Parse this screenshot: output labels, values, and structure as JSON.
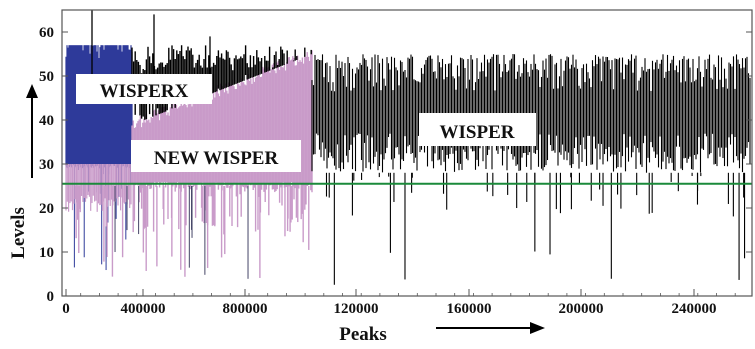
{
  "chart_data": {
    "type": "bar",
    "xlabel": "Peaks",
    "ylabel": "Levels",
    "ylim": [
      0,
      65
    ],
    "y_ticks": [
      0,
      10,
      20,
      30,
      40,
      50,
      60
    ],
    "x_tick_labels": [
      "0",
      "400000",
      "800000",
      "120000",
      "160000",
      "200000",
      "240000"
    ],
    "threshold_level": 25.5,
    "grid": false,
    "colors": {
      "wisperx": "#2e3a9a",
      "new_wisper": "#c99bc9",
      "wisper": "#000000",
      "threshold_line": "#1a8a3a",
      "axis": "#555555"
    },
    "regions": [
      {
        "label": "WISPERX",
        "level_range": [
          30,
          57
        ]
      },
      {
        "label": "NEW WISPER",
        "level_range": [
          30,
          55
        ]
      },
      {
        "label": "WISPER",
        "level_range": [
          28,
          55
        ]
      }
    ]
  }
}
